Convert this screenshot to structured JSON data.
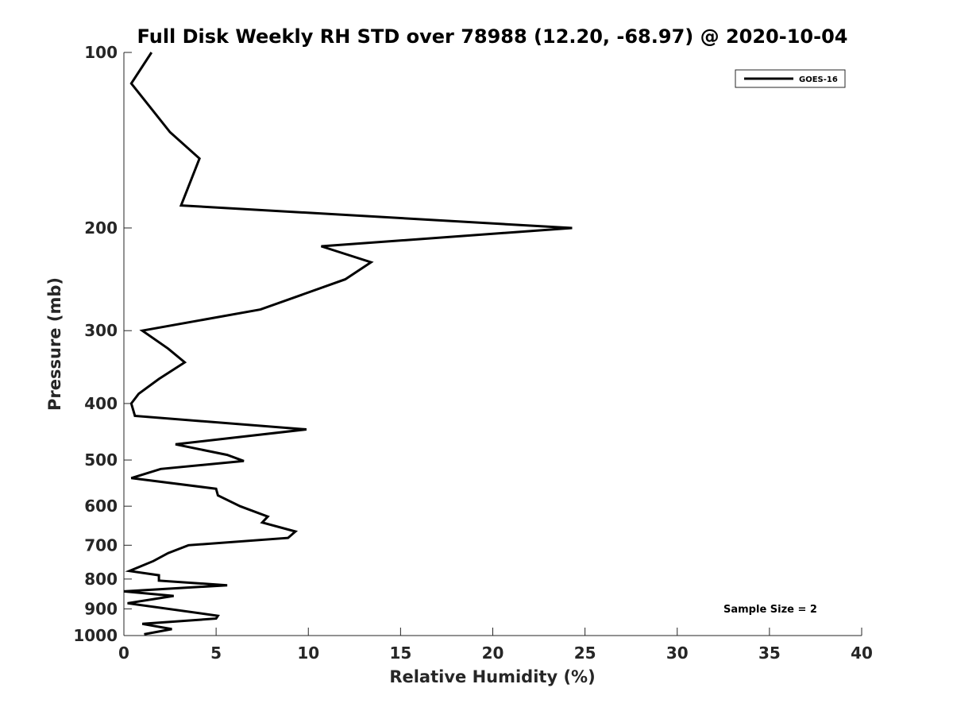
{
  "chart_data": {
    "type": "line",
    "title": "Full Disk Weekly RH STD over 78988 (12.20, -68.97) @ 2020-10-04",
    "xlabel": "Relative Humidity (%)",
    "ylabel": "Pressure (mb)",
    "xlim": [
      0,
      40
    ],
    "ylim": [
      100,
      1000
    ],
    "yscale": "log",
    "y_reversed": true,
    "xticks": [
      0,
      5,
      10,
      15,
      20,
      25,
      30,
      35,
      40
    ],
    "yticks": [
      100,
      200,
      300,
      400,
      500,
      600,
      700,
      800,
      900,
      1000
    ],
    "grid": false,
    "legend_position": "top-right",
    "line_color": "#000000",
    "annotation": "Sample Size = 2",
    "series": [
      {
        "name": "GOES-16",
        "x": [
          1.5,
          0.4,
          2.5,
          4.1,
          3.1,
          24.3,
          10.7,
          13.4,
          12.0,
          7.4,
          1.0,
          2.4,
          3.3,
          1.9,
          0.8,
          0.4,
          0.6,
          9.9,
          2.8,
          5.6,
          6.5,
          2.0,
          0.4,
          5.0,
          5.1,
          6.3,
          7.8,
          7.5,
          9.3,
          8.9,
          3.5,
          2.4,
          1.6,
          0.3,
          1.9,
          1.9,
          5.6,
          0.0,
          2.7,
          0.2,
          5.1,
          5.0,
          1.0,
          2.6,
          1.1
        ],
        "y": [
          100,
          113,
          137,
          152,
          183,
          200,
          215,
          229,
          245,
          276,
          300,
          322,
          340,
          363,
          385,
          400,
          420,
          443,
          470,
          490,
          502,
          518,
          537,
          560,
          575,
          600,
          625,
          640,
          663,
          680,
          700,
          722,
          745,
          775,
          788,
          805,
          820,
          840,
          855,
          880,
          925,
          935,
          955,
          975,
          995
        ]
      }
    ]
  }
}
